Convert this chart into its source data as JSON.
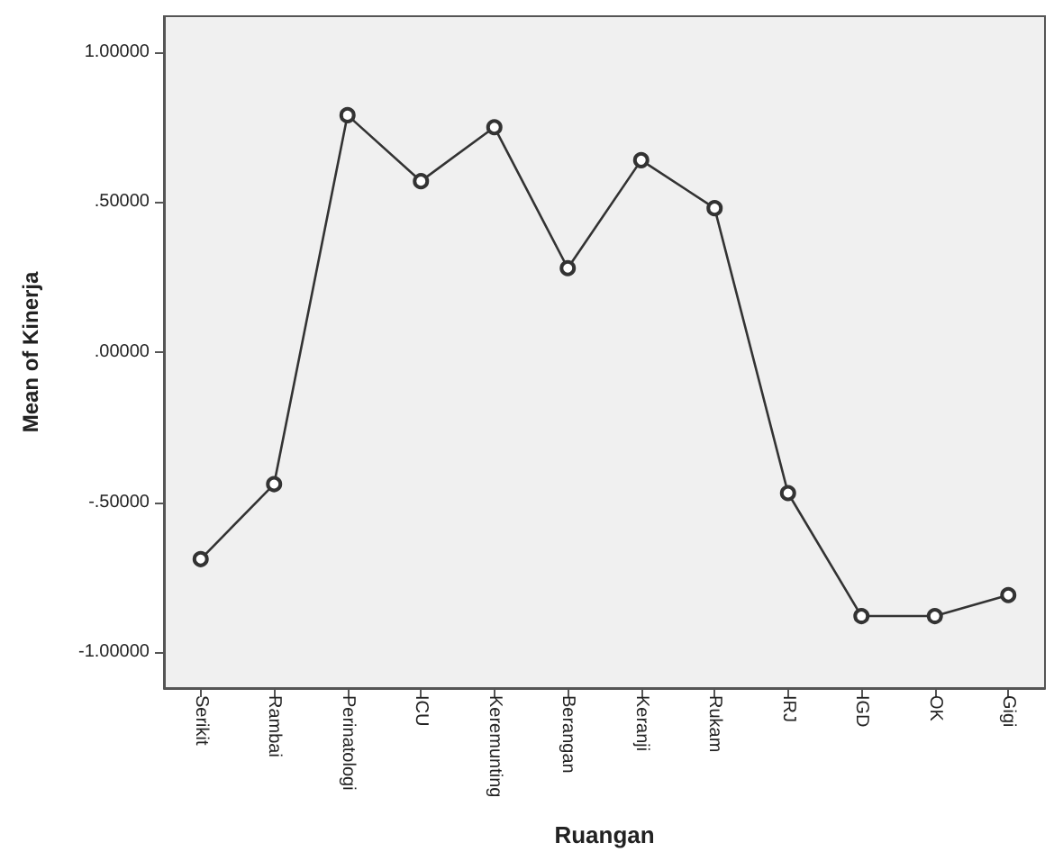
{
  "chart_data": {
    "type": "line",
    "xlabel": "Ruangan",
    "ylabel": "Mean of Kinerja",
    "categories": [
      "Serikit",
      "Rambai",
      "Perinatologi",
      "ICU",
      "Keremunting",
      "Berangan",
      "Keranji",
      "Rukam",
      "IRJ",
      "IGD",
      "OK",
      "Gigi"
    ],
    "series": [
      {
        "color": "#333333",
        "values": [
          -0.69,
          -0.44,
          0.79,
          0.57,
          0.75,
          0.28,
          0.64,
          0.48,
          -0.47,
          -0.88,
          -0.88,
          -0.81
        ]
      }
    ],
    "ylim": [
      -1.12,
      1.12
    ],
    "yticks": [
      {
        "value": -1,
        "label": "-1.00000"
      },
      {
        "value": -0.5,
        "label": "-.50000"
      },
      {
        "value": 0,
        "label": ".00000"
      },
      {
        "value": 0.5,
        "label": ".50000"
      },
      {
        "value": 1,
        "label": "1.00000"
      }
    ],
    "grid": false,
    "marker": "circle",
    "line_style": "solid"
  }
}
